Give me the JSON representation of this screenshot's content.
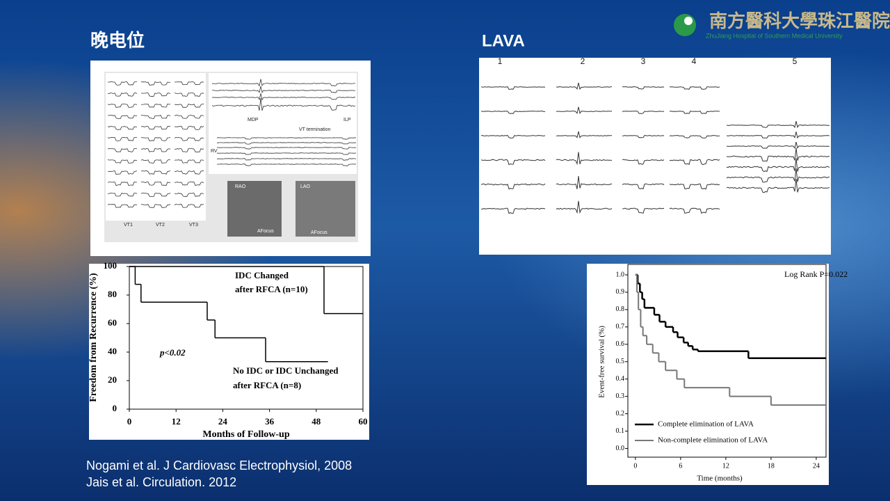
{
  "logo": {
    "text": "南方醫科大學珠江醫院",
    "subtitle": "ZhuJiang Hospital of Southern Medical University"
  },
  "left": {
    "title": "晚电位",
    "figure": {
      "labels": [
        "VT1",
        "VT2",
        "VT3",
        "MDP",
        "ILP",
        "VT termination",
        "RV",
        "RAO",
        "LAO",
        "AFocus",
        "AFocus"
      ]
    }
  },
  "right": {
    "title": "LAVA",
    "figure": {
      "labels": [
        "1",
        "2",
        "3",
        "4",
        "5"
      ]
    }
  },
  "charts": [
    {
      "type": "step",
      "xlabel": "Months of Follow-up",
      "ylabel": "Freedom from Recurrence (%)",
      "annotations": [
        "IDC Changed",
        "after RFCA (n=10)",
        "p<0.02",
        "No IDC or IDC Unchanged",
        "after RFCA (n=8)"
      ],
      "xlim": [
        0,
        60
      ],
      "ylim": [
        0,
        100
      ],
      "xticks": [
        0,
        12,
        24,
        36,
        48,
        60
      ],
      "yticks": [
        0,
        20,
        40,
        60,
        80,
        100
      ],
      "series": [
        {
          "color": "#000000",
          "x": [
            0,
            50,
            60
          ],
          "values": [
            100,
            67,
            67
          ]
        },
        {
          "color": "#000000",
          "x": [
            0,
            1.5,
            3,
            20,
            22,
            35,
            51
          ],
          "values": [
            100,
            87.5,
            75,
            62.5,
            50,
            33.3,
            33.3
          ]
        }
      ]
    },
    {
      "type": "step",
      "xlabel": "Time (months)",
      "ylabel": "Event-free survival (%)",
      "annotations": [
        "Log Rank P=0.022"
      ],
      "xlim": [
        -1,
        25.3
      ],
      "ylim": [
        -0.05,
        1.06
      ],
      "xticks": [
        0,
        6,
        12,
        18,
        24
      ],
      "yticks": [
        {
          "value": 0,
          "label": "0.0"
        },
        0.1,
        0.2,
        0.3,
        0.4,
        0.5,
        0.6,
        0.7,
        0.8,
        0.9,
        {
          "value": 1,
          "label": "1.0"
        }
      ],
      "legend": "lower left",
      "series": [
        {
          "name": "Complete elimination of LAVA",
          "color": "#000000",
          "x": [
            0,
            0.3,
            0.6,
            0.9,
            1.2,
            2.5,
            3.2,
            4,
            5,
            5.6,
            6.4,
            7,
            7.6,
            8.3,
            15,
            25.3
          ],
          "values": [
            1.0,
            0.95,
            0.9,
            0.86,
            0.81,
            0.77,
            0.73,
            0.7,
            0.67,
            0.64,
            0.61,
            0.59,
            0.57,
            0.56,
            0.52,
            0.52
          ]
        },
        {
          "name": "Non-complete elimination of LAVA",
          "color": "#777777",
          "x": [
            0,
            0.2,
            0.4,
            0.7,
            1,
            1.5,
            2.3,
            3.1,
            4,
            5.5,
            6.5,
            12.5,
            18,
            25.3
          ],
          "values": [
            1.0,
            0.9,
            0.8,
            0.7,
            0.65,
            0.6,
            0.55,
            0.5,
            0.45,
            0.4,
            0.35,
            0.3,
            0.25,
            0.25
          ]
        }
      ]
    }
  ],
  "references": [
    "Nogami  et al. J Cardiovasc Electrophysiol, 2008",
    "Jais et al. Circulation. 2012"
  ]
}
